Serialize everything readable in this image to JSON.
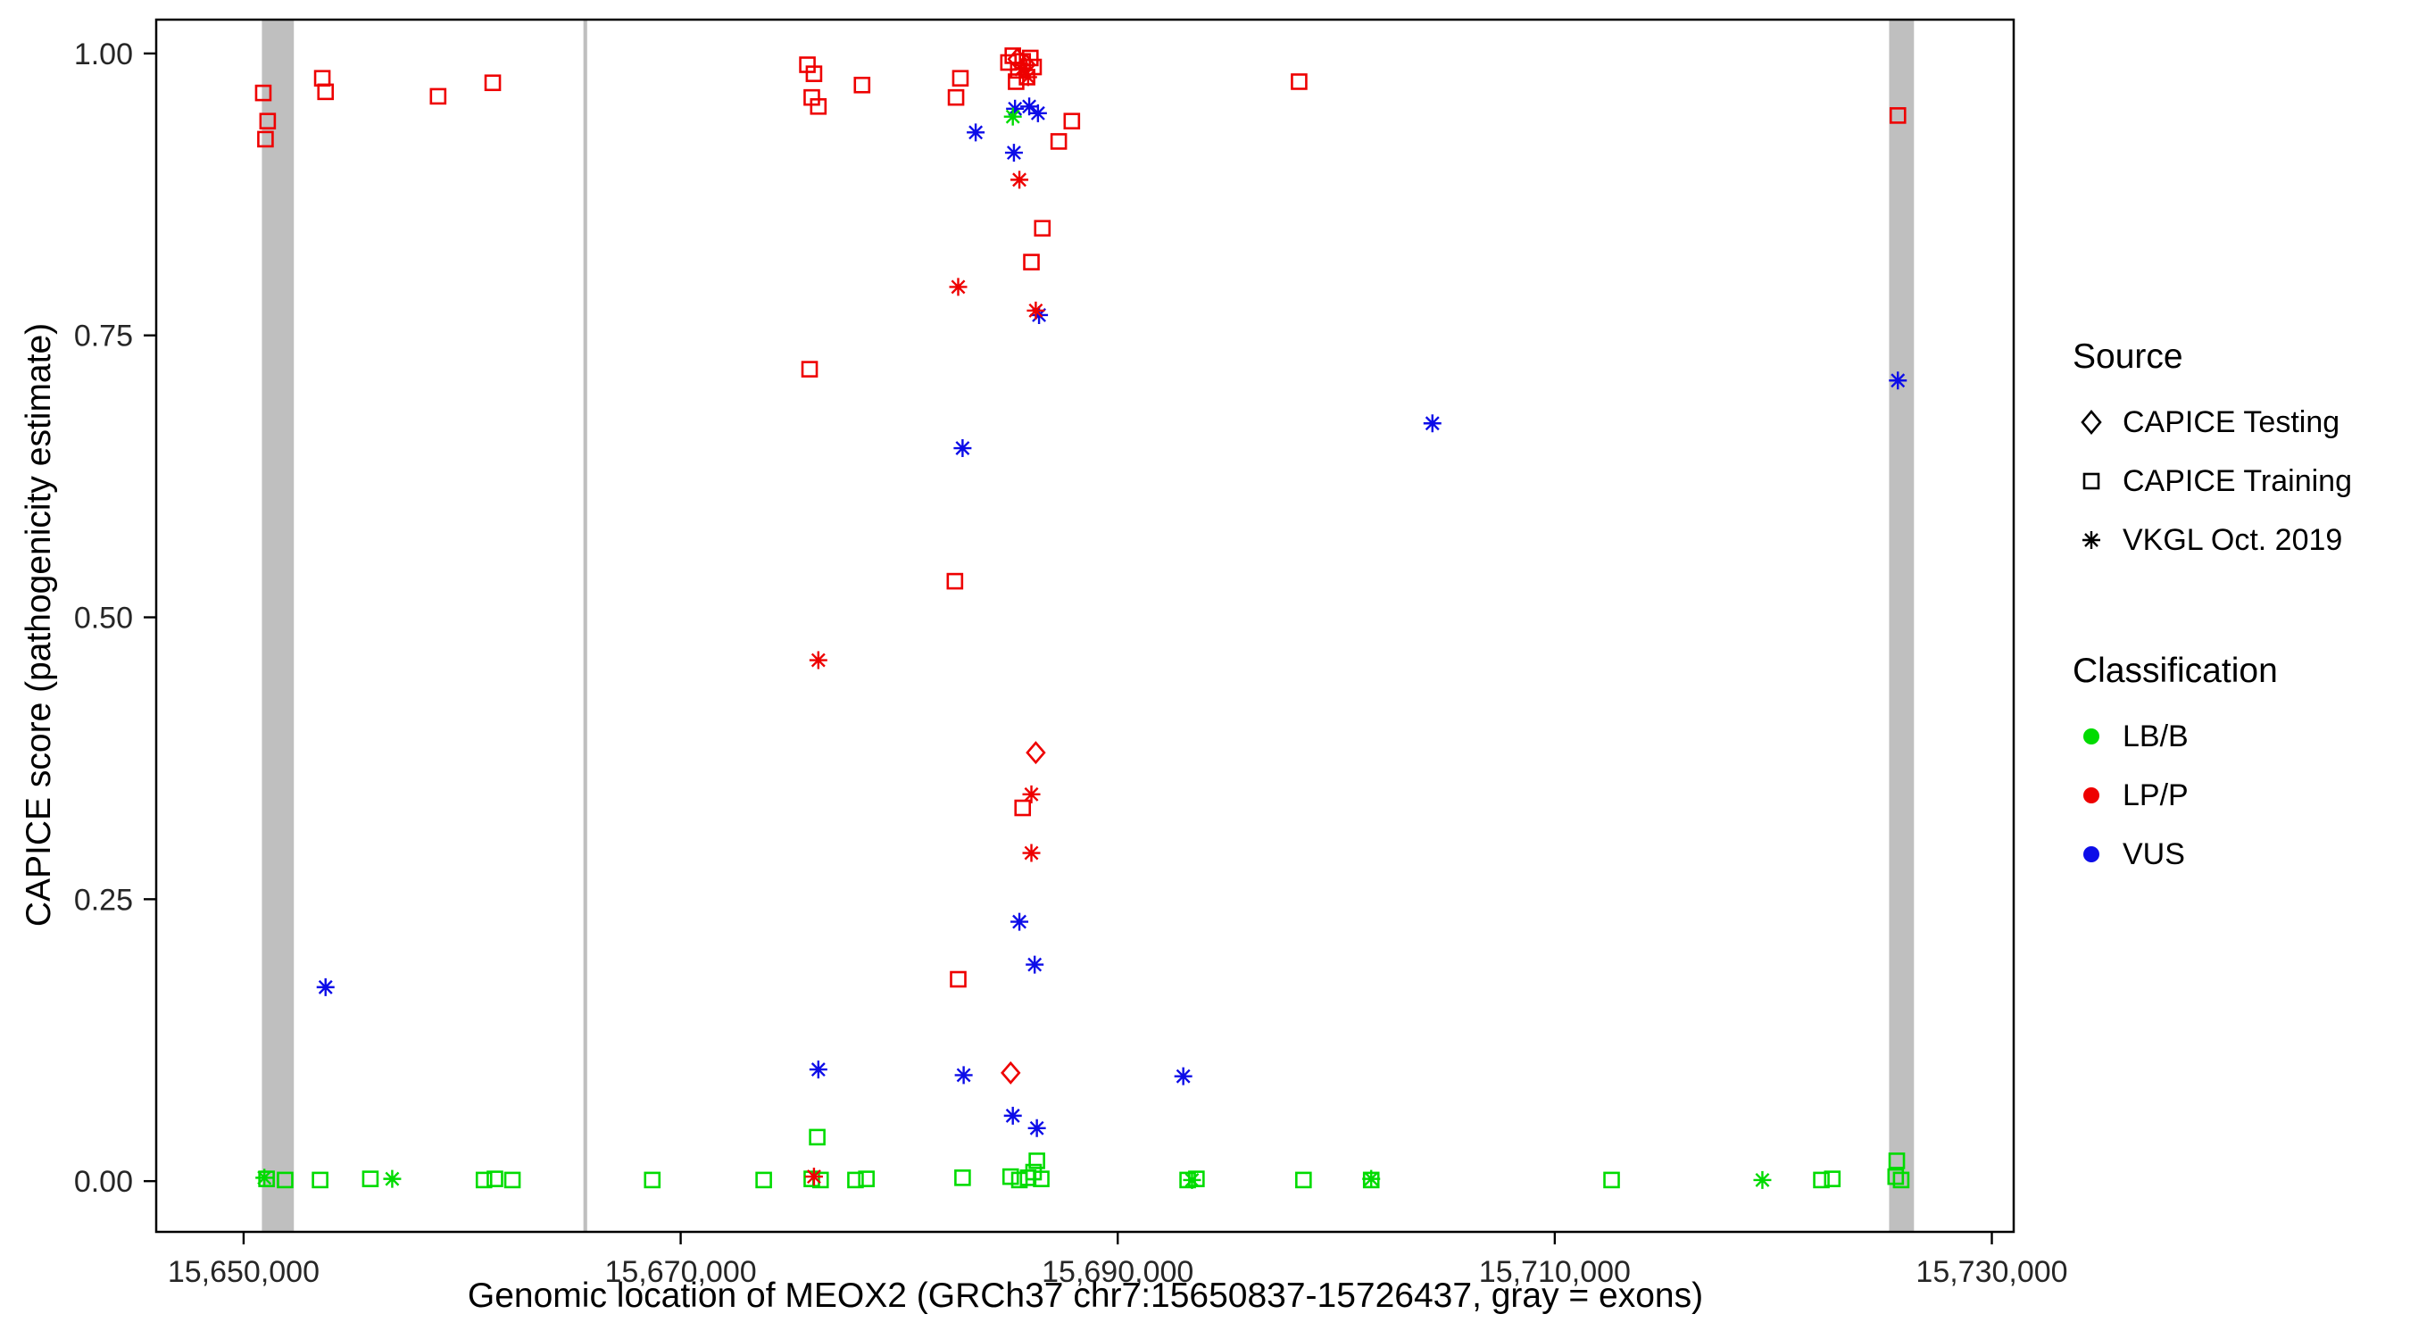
{
  "chart_data": {
    "type": "scatter",
    "title": "",
    "xlabel": "Genomic location of MEOX2 (GRCh37 chr7:15650837-15726437, gray = exons)",
    "ylabel": "CAPICE score (pathogenicity estimate)",
    "xlim": [
      15646000,
      15731000
    ],
    "ylim": [
      -0.045,
      1.03
    ],
    "grid": "off",
    "legend_position": "right",
    "x_ticks": [
      {
        "value": 15650000,
        "label": "15,650,000"
      },
      {
        "value": 15670000,
        "label": "15,670,000"
      },
      {
        "value": 15690000,
        "label": "15,690,000"
      },
      {
        "value": 15710000,
        "label": "15,710,000"
      },
      {
        "value": 15730000,
        "label": "15,730,000"
      }
    ],
    "y_ticks": [
      {
        "value": 0.0,
        "label": "0.00"
      },
      {
        "value": 0.25,
        "label": "0.25"
      },
      {
        "value": 0.5,
        "label": "0.50"
      },
      {
        "value": 0.75,
        "label": "0.75"
      },
      {
        "value": 1.0,
        "label": "1.00"
      }
    ],
    "exon_color": "#BFBFBF",
    "exon_regions": [
      [
        15650837,
        15652300
      ],
      [
        15665550,
        15665720
      ],
      [
        15725300,
        15726437
      ]
    ],
    "class_colors": {
      "LB/B": "#00DB00",
      "LP/P": "#EE0000",
      "VUS": "#0D0DE8"
    },
    "series": [
      {
        "name": "CAPICE Testing",
        "symbol": "diamond",
        "points": [
          [
            15685400,
            0.995,
            "LP/P"
          ],
          [
            15685800,
            0.99,
            "LP/P"
          ],
          [
            15686250,
            0.38,
            "LP/P"
          ],
          [
            15685100,
            0.096,
            "LP/P"
          ]
        ]
      },
      {
        "name": "CAPICE Training",
        "symbol": "square",
        "points": [
          [
            15650900,
            0.965,
            "LP/P"
          ],
          [
            15651100,
            0.94,
            "LP/P"
          ],
          [
            15651000,
            0.924,
            "LP/P"
          ],
          [
            15653600,
            0.978,
            "LP/P"
          ],
          [
            15653750,
            0.966,
            "LP/P"
          ],
          [
            15658900,
            0.962,
            "LP/P"
          ],
          [
            15661400,
            0.974,
            "LP/P"
          ],
          [
            15675800,
            0.99,
            "LP/P"
          ],
          [
            15676100,
            0.982,
            "LP/P"
          ],
          [
            15676000,
            0.961,
            "LP/P"
          ],
          [
            15676300,
            0.953,
            "LP/P"
          ],
          [
            15678300,
            0.972,
            "LP/P"
          ],
          [
            15682800,
            0.978,
            "LP/P"
          ],
          [
            15682600,
            0.961,
            "LP/P"
          ],
          [
            15685000,
            0.992,
            "LP/P"
          ],
          [
            15685200,
            0.998,
            "LP/P"
          ],
          [
            15685450,
            0.985,
            "LP/P"
          ],
          [
            15685650,
            0.993,
            "LP/P"
          ],
          [
            15685850,
            0.979,
            "LP/P"
          ],
          [
            15686000,
            0.996,
            "LP/P"
          ],
          [
            15686150,
            0.988,
            "LP/P"
          ],
          [
            15685350,
            0.975,
            "LP/P"
          ],
          [
            15687900,
            0.94,
            "LP/P"
          ],
          [
            15687300,
            0.922,
            "LP/P"
          ],
          [
            15686550,
            0.845,
            "LP/P"
          ],
          [
            15686050,
            0.815,
            "LP/P"
          ],
          [
            15698300,
            0.975,
            "LP/P"
          ],
          [
            15725700,
            0.945,
            "LP/P"
          ],
          [
            15675900,
            0.72,
            "LP/P"
          ],
          [
            15682550,
            0.532,
            "LP/P"
          ],
          [
            15685650,
            0.331,
            "LP/P"
          ],
          [
            15682700,
            0.179,
            "LP/P"
          ],
          [
            15676250,
            0.039,
            "LB/B"
          ],
          [
            15725650,
            0.018,
            "LB/B"
          ],
          [
            15686300,
            0.018,
            "LB/B"
          ],
          [
            15651050,
            0.002,
            "LB/B"
          ],
          [
            15651900,
            0.001,
            "LB/B"
          ],
          [
            15653500,
            0.001,
            "LB/B"
          ],
          [
            15655800,
            0.002,
            "LB/B"
          ],
          [
            15661000,
            0.001,
            "LB/B"
          ],
          [
            15661500,
            0.002,
            "LB/B"
          ],
          [
            15662300,
            0.001,
            "LB/B"
          ],
          [
            15668700,
            0.001,
            "LB/B"
          ],
          [
            15673800,
            0.001,
            "LB/B"
          ],
          [
            15676000,
            0.002,
            "LB/B"
          ],
          [
            15676400,
            0.001,
            "LB/B"
          ],
          [
            15678000,
            0.001,
            "LB/B"
          ],
          [
            15678500,
            0.002,
            "LB/B"
          ],
          [
            15682900,
            0.003,
            "LB/B"
          ],
          [
            15685100,
            0.004,
            "LB/B"
          ],
          [
            15685500,
            0.001,
            "LB/B"
          ],
          [
            15685900,
            0.003,
            "LB/B"
          ],
          [
            15686150,
            0.008,
            "LB/B"
          ],
          [
            15686500,
            0.002,
            "LB/B"
          ],
          [
            15693200,
            0.001,
            "LB/B"
          ],
          [
            15693600,
            0.002,
            "LB/B"
          ],
          [
            15698500,
            0.001,
            "LB/B"
          ],
          [
            15701600,
            0.001,
            "LB/B"
          ],
          [
            15712600,
            0.001,
            "LB/B"
          ],
          [
            15722200,
            0.001,
            "LB/B"
          ],
          [
            15722700,
            0.002,
            "LB/B"
          ],
          [
            15725600,
            0.004,
            "LB/B"
          ],
          [
            15725850,
            0.001,
            "LB/B"
          ]
        ]
      },
      {
        "name": "VKGL Oct. 2019",
        "symbol": "asterisk",
        "points": [
          [
            15685300,
            0.951,
            "VUS"
          ],
          [
            15685950,
            0.953,
            "VUS"
          ],
          [
            15686350,
            0.947,
            "VUS"
          ],
          [
            15683500,
            0.93,
            "VUS"
          ],
          [
            15685250,
            0.912,
            "VUS"
          ],
          [
            15686400,
            0.768,
            "VUS"
          ],
          [
            15725700,
            0.71,
            "VUS"
          ],
          [
            15704400,
            0.672,
            "VUS"
          ],
          [
            15682900,
            0.65,
            "VUS"
          ],
          [
            15685500,
            0.23,
            "VUS"
          ],
          [
            15686200,
            0.192,
            "VUS"
          ],
          [
            15653750,
            0.172,
            "VUS"
          ],
          [
            15676300,
            0.099,
            "VUS"
          ],
          [
            15682950,
            0.094,
            "VUS"
          ],
          [
            15693000,
            0.093,
            "VUS"
          ],
          [
            15685200,
            0.058,
            "VUS"
          ],
          [
            15686300,
            0.047,
            "VUS"
          ],
          [
            15685600,
            0.986,
            "LP/P"
          ],
          [
            15685900,
            0.979,
            "LP/P"
          ],
          [
            15685500,
            0.888,
            "LP/P"
          ],
          [
            15682700,
            0.793,
            "LP/P"
          ],
          [
            15686250,
            0.772,
            "LP/P"
          ],
          [
            15676300,
            0.462,
            "LP/P"
          ],
          [
            15686050,
            0.343,
            "LP/P"
          ],
          [
            15686050,
            0.291,
            "LP/P"
          ],
          [
            15676100,
            0.004,
            "LP/P"
          ],
          [
            15685200,
            0.944,
            "LB/B"
          ],
          [
            15650950,
            0.003,
            "LB/B"
          ],
          [
            15656800,
            0.002,
            "LB/B"
          ],
          [
            15693400,
            0.001,
            "LB/B"
          ],
          [
            15701600,
            0.002,
            "LB/B"
          ],
          [
            15719500,
            0.001,
            "LB/B"
          ]
        ]
      }
    ]
  },
  "legend": {
    "source": {
      "title": "Source",
      "items": [
        {
          "label": "CAPICE Testing",
          "symbol": "diamond"
        },
        {
          "label": "CAPICE Training",
          "symbol": "square"
        },
        {
          "label": "VKGL Oct. 2019",
          "symbol": "asterisk"
        }
      ]
    },
    "classification": {
      "title": "Classification",
      "items": [
        {
          "label": "LB/B",
          "color_key": "LB/B"
        },
        {
          "label": "LP/P",
          "color_key": "LP/P"
        },
        {
          "label": "VUS",
          "color_key": "VUS"
        }
      ]
    }
  }
}
